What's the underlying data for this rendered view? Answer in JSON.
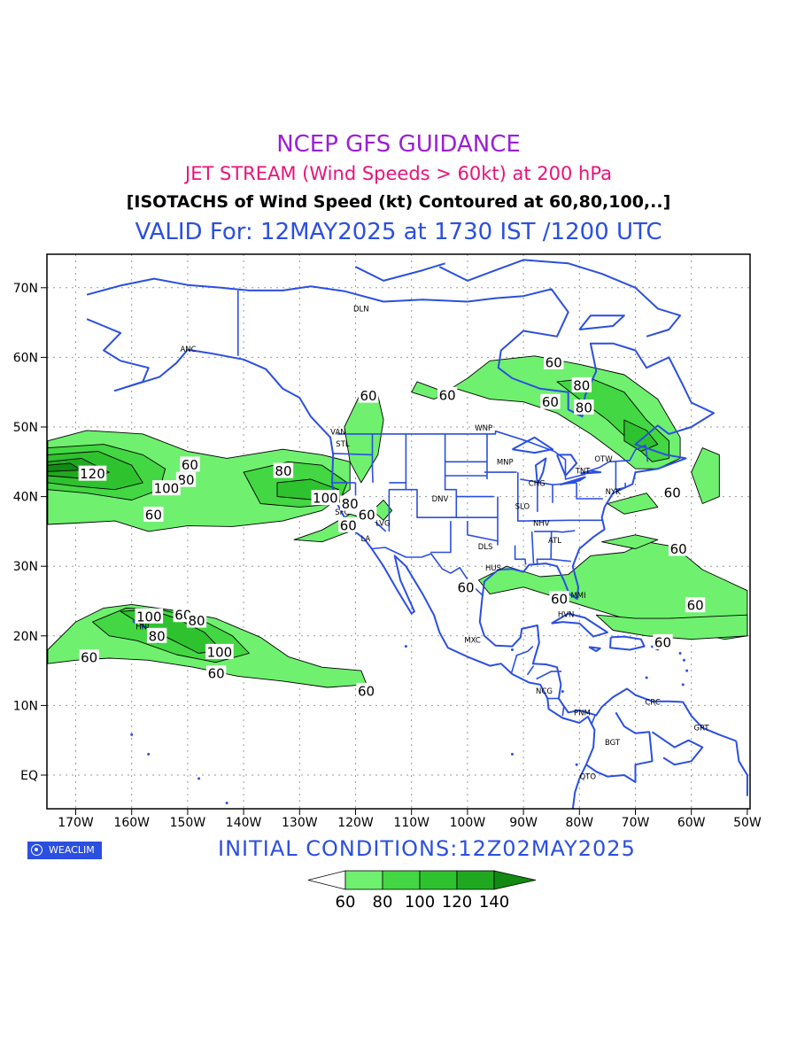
{
  "header": {
    "title": "NCEP GFS GUIDANCE",
    "subtitle": "JET STREAM (Wind Speeds > 60kt) at 200 hPa",
    "contour_note": "[ISOTACHS of Wind Speed (kt) Contoured at 60,80,100,..]",
    "valid_time": "VALID For: 12MAY2025 at 1730 IST /1200 UTC"
  },
  "colors": {
    "title": "#9a1fd6",
    "subtitle": "#e8137b",
    "note": "#000000",
    "valid": "#2b4fe0",
    "coast": "#2b4fe0",
    "fill_60": "#6ff06f",
    "fill_80": "#43d743",
    "fill_100": "#2fc22f",
    "fill_120": "#21a821",
    "fill_140": "#118a11"
  },
  "map": {
    "lat_labels": [
      "70N",
      "60N",
      "50N",
      "40N",
      "30N",
      "20N",
      "10N",
      "EQ"
    ],
    "lon_labels": [
      "170W",
      "160W",
      "150W",
      "140W",
      "130W",
      "120W",
      "110W",
      "100W",
      "90W",
      "80W",
      "70W",
      "60W",
      "50W"
    ],
    "cities": [
      {
        "name": "ANC",
        "lon": -149.9,
        "lat": 61.2
      },
      {
        "name": "DLN",
        "lon": -119.0,
        "lat": 67.0
      },
      {
        "name": "VAN",
        "lon": -123.1,
        "lat": 49.3
      },
      {
        "name": "STL",
        "lon": -122.3,
        "lat": 47.6
      },
      {
        "name": "WNP",
        "lon": -97.1,
        "lat": 49.9
      },
      {
        "name": "MNP",
        "lon": -93.3,
        "lat": 45.0
      },
      {
        "name": "CHG",
        "lon": -87.6,
        "lat": 41.9
      },
      {
        "name": "TNT",
        "lon": -79.4,
        "lat": 43.7
      },
      {
        "name": "OTW",
        "lon": -75.7,
        "lat": 45.4
      },
      {
        "name": "NYK",
        "lon": -74.0,
        "lat": 40.7
      },
      {
        "name": "DNV",
        "lon": -104.9,
        "lat": 39.7
      },
      {
        "name": "SLO",
        "lon": -90.2,
        "lat": 38.6
      },
      {
        "name": "NHV",
        "lon": -86.8,
        "lat": 36.2
      },
      {
        "name": "ATL",
        "lon": -84.4,
        "lat": 33.7
      },
      {
        "name": "DLS",
        "lon": -96.8,
        "lat": 32.8
      },
      {
        "name": "HUS",
        "lon": -95.4,
        "lat": 29.8
      },
      {
        "name": "MMI",
        "lon": -80.2,
        "lat": 25.8
      },
      {
        "name": "HVN",
        "lon": -82.4,
        "lat": 23.1
      },
      {
        "name": "MXC",
        "lon": -99.1,
        "lat": 19.4
      },
      {
        "name": "NCG",
        "lon": -86.3,
        "lat": 12.1
      },
      {
        "name": "PNM",
        "lon": -79.5,
        "lat": 9.0
      },
      {
        "name": "CRC",
        "lon": -66.9,
        "lat": 10.5
      },
      {
        "name": "GRT",
        "lon": -58.2,
        "lat": 6.8
      },
      {
        "name": "BGT",
        "lon": -74.1,
        "lat": 4.7
      },
      {
        "name": "QTO",
        "lon": -78.5,
        "lat": -0.2
      },
      {
        "name": "LA",
        "lon": -118.2,
        "lat": 34.0
      },
      {
        "name": "LVG",
        "lon": -115.1,
        "lat": 36.2
      },
      {
        "name": "SFC",
        "lon": -122.4,
        "lat": 37.8
      },
      {
        "name": "HNL",
        "lon": -157.9,
        "lat": 21.3
      }
    ],
    "contour_labels": [
      {
        "text": "60",
        "lon": -149.6,
        "lat": 44.6
      },
      {
        "text": "80",
        "lon": -150.3,
        "lat": 42.4
      },
      {
        "text": "100",
        "lon": -153.8,
        "lat": 41.2
      },
      {
        "text": "120",
        "lon": -167.0,
        "lat": 43.3
      },
      {
        "text": "60",
        "lon": -156.1,
        "lat": 37.4
      },
      {
        "text": "80",
        "lon": -132.9,
        "lat": 43.7
      },
      {
        "text": "100",
        "lon": -125.4,
        "lat": 39.8
      },
      {
        "text": "80",
        "lon": -121.0,
        "lat": 39.0
      },
      {
        "text": "60",
        "lon": -118.0,
        "lat": 37.4
      },
      {
        "text": "60",
        "lon": -121.3,
        "lat": 35.9
      },
      {
        "text": "60",
        "lon": -117.7,
        "lat": 54.5
      },
      {
        "text": "60",
        "lon": -103.6,
        "lat": 54.6
      },
      {
        "text": "60",
        "lon": -84.6,
        "lat": 59.3
      },
      {
        "text": "80",
        "lon": -79.6,
        "lat": 56.0
      },
      {
        "text": "60",
        "lon": -85.2,
        "lat": 53.6
      },
      {
        "text": "80",
        "lon": -79.2,
        "lat": 52.8
      },
      {
        "text": "60",
        "lon": -63.4,
        "lat": 40.6
      },
      {
        "text": "60",
        "lon": -62.3,
        "lat": 32.5
      },
      {
        "text": "60",
        "lon": -59.3,
        "lat": 24.4
      },
      {
        "text": "60",
        "lon": -65.1,
        "lat": 19.1
      },
      {
        "text": "60",
        "lon": -83.6,
        "lat": 25.3
      },
      {
        "text": "60",
        "lon": -100.3,
        "lat": 27.0
      },
      {
        "text": "100",
        "lon": -156.9,
        "lat": 22.8
      },
      {
        "text": "60",
        "lon": -150.8,
        "lat": 23.0
      },
      {
        "text": "80",
        "lon": -148.4,
        "lat": 22.2
      },
      {
        "text": "80",
        "lon": -155.5,
        "lat": 20.0
      },
      {
        "text": "100",
        "lon": -144.3,
        "lat": 17.7
      },
      {
        "text": "60",
        "lon": -144.9,
        "lat": 14.6
      },
      {
        "text": "60",
        "lon": -167.6,
        "lat": 16.9
      },
      {
        "text": "60",
        "lon": -118.1,
        "lat": 12.1
      }
    ]
  },
  "footer": {
    "logo_text": "WEACLIM",
    "initial_conditions": "INITIAL CONDITIONS:12Z02MAY2025"
  },
  "legend": {
    "ticks": [
      "60",
      "80",
      "100",
      "120",
      "140"
    ]
  }
}
